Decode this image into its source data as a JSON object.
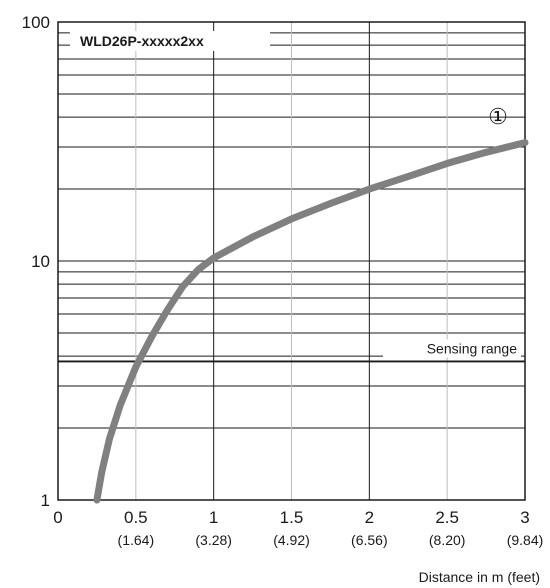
{
  "chart_data": {
    "type": "line",
    "title": "WLD26P-xxxxx2xx",
    "xlabel": "Distance in m (feet)",
    "ylabel": "",
    "xlim": [
      0,
      3
    ],
    "ylim": [
      1,
      100
    ],
    "yscale": "log",
    "grid": true,
    "x_ticks": [
      {
        "value": 0,
        "label": "0",
        "sublabel": ""
      },
      {
        "value": 0.5,
        "label": "0.5",
        "sublabel": "(1.64)"
      },
      {
        "value": 1,
        "label": "1",
        "sublabel": "(3.28)"
      },
      {
        "value": 1.5,
        "label": "1.5",
        "sublabel": "(4.92)"
      },
      {
        "value": 2,
        "label": "2",
        "sublabel": "(6.56)"
      },
      {
        "value": 2.5,
        "label": "2.5",
        "sublabel": "(8.20)"
      },
      {
        "value": 3,
        "label": "3",
        "sublabel": "(9.84)"
      }
    ],
    "y_ticks": [
      {
        "value": 1,
        "label": "1"
      },
      {
        "value": 10,
        "label": "10"
      },
      {
        "value": 100,
        "label": "100"
      }
    ],
    "series": [
      {
        "marker": "①",
        "color": "#808080",
        "x": [
          0.25,
          0.28,
          0.33,
          0.4,
          0.5,
          0.6,
          0.7,
          0.8,
          0.9,
          1.0,
          1.25,
          1.5,
          1.75,
          2.0,
          2.25,
          2.5,
          2.75,
          3.0
        ],
        "y": [
          1.0,
          1.3,
          1.8,
          2.5,
          3.6,
          4.8,
          6.2,
          7.8,
          9.2,
          10.3,
          12.6,
          15.0,
          17.4,
          20.0,
          22.6,
          25.6,
          28.5,
          31.3
        ]
      }
    ],
    "annotations": [
      {
        "label": "Sensing range",
        "y": 3.8
      }
    ]
  }
}
